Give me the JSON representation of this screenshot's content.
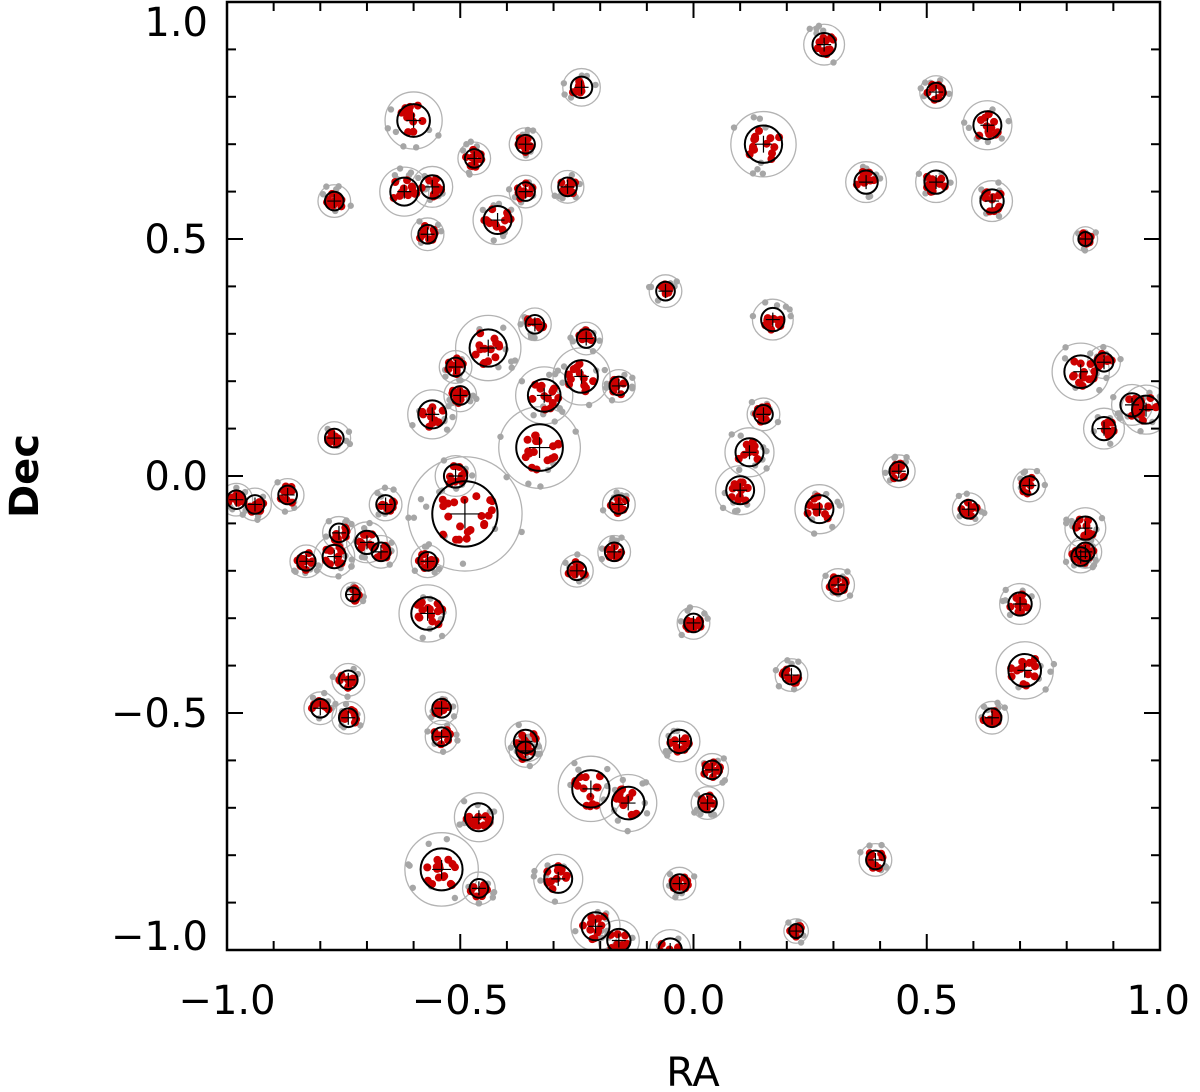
{
  "chart_data": {
    "type": "scatter",
    "title": "",
    "xlabel": "RA",
    "ylabel": "Dec",
    "xlim": [
      -1.0,
      1.0
    ],
    "ylim": [
      -1.0,
      1.0
    ],
    "grid": false,
    "xticks": [
      {
        "value": -1.0,
        "label": "−1.0"
      },
      {
        "value": -0.5,
        "label": "−0.5"
      },
      {
        "value": 0.0,
        "label": "0.0"
      },
      {
        "value": 0.5,
        "label": "0.5"
      },
      {
        "value": 1.0,
        "label": "1.0"
      }
    ],
    "yticks": [
      {
        "value": -1.0,
        "label": "−1.0"
      },
      {
        "value": -0.5,
        "label": "−0.5"
      },
      {
        "value": 0.0,
        "label": "0.0"
      },
      {
        "value": 0.5,
        "label": "0.5"
      },
      {
        "value": 1.0,
        "label": "1.0"
      }
    ],
    "colors": {
      "member": "#cc0000",
      "field": "#a6a6a6",
      "inner_circle": "#000000",
      "outer_circle": "#b3b3b3"
    },
    "clusters": [
      {
        "ra": 0.28,
        "dec": 0.91,
        "r": 0.025
      },
      {
        "ra": -0.24,
        "dec": 0.82,
        "r": 0.023
      },
      {
        "ra": 0.52,
        "dec": 0.81,
        "r": 0.02
      },
      {
        "ra": -0.6,
        "dec": 0.75,
        "r": 0.035
      },
      {
        "ra": 0.63,
        "dec": 0.74,
        "r": 0.03
      },
      {
        "ra": 0.15,
        "dec": 0.7,
        "r": 0.04
      },
      {
        "ra": -0.47,
        "dec": 0.67,
        "r": 0.02
      },
      {
        "ra": -0.36,
        "dec": 0.7,
        "r": 0.02
      },
      {
        "ra": -0.77,
        "dec": 0.58,
        "r": 0.02
      },
      {
        "ra": -0.62,
        "dec": 0.6,
        "r": 0.03
      },
      {
        "ra": -0.56,
        "dec": 0.61,
        "r": 0.025
      },
      {
        "ra": -0.36,
        "dec": 0.6,
        "r": 0.02
      },
      {
        "ra": -0.27,
        "dec": 0.61,
        "r": 0.02
      },
      {
        "ra": 0.37,
        "dec": 0.62,
        "r": 0.025
      },
      {
        "ra": 0.52,
        "dec": 0.62,
        "r": 0.025
      },
      {
        "ra": 0.64,
        "dec": 0.58,
        "r": 0.025
      },
      {
        "ra": -0.42,
        "dec": 0.54,
        "r": 0.03
      },
      {
        "ra": -0.57,
        "dec": 0.51,
        "r": 0.02
      },
      {
        "ra": 0.84,
        "dec": 0.5,
        "r": 0.015
      },
      {
        "ra": -0.06,
        "dec": 0.39,
        "r": 0.02
      },
      {
        "ra": 0.17,
        "dec": 0.33,
        "r": 0.025
      },
      {
        "ra": -0.34,
        "dec": 0.32,
        "r": 0.02
      },
      {
        "ra": -0.23,
        "dec": 0.29,
        "r": 0.02
      },
      {
        "ra": -0.44,
        "dec": 0.27,
        "r": 0.04
      },
      {
        "ra": -0.51,
        "dec": 0.23,
        "r": 0.02
      },
      {
        "ra": 0.83,
        "dec": 0.22,
        "r": 0.035
      },
      {
        "ra": 0.88,
        "dec": 0.24,
        "r": 0.02
      },
      {
        "ra": -0.24,
        "dec": 0.21,
        "r": 0.035
      },
      {
        "ra": -0.16,
        "dec": 0.19,
        "r": 0.02
      },
      {
        "ra": -0.32,
        "dec": 0.17,
        "r": 0.035
      },
      {
        "ra": -0.5,
        "dec": 0.17,
        "r": 0.02
      },
      {
        "ra": 0.97,
        "dec": 0.14,
        "r": 0.03
      },
      {
        "ra": 0.94,
        "dec": 0.15,
        "r": 0.025
      },
      {
        "ra": -0.56,
        "dec": 0.13,
        "r": 0.03
      },
      {
        "ra": 0.15,
        "dec": 0.13,
        "r": 0.02
      },
      {
        "ra": 0.88,
        "dec": 0.1,
        "r": 0.025
      },
      {
        "ra": -0.77,
        "dec": 0.08,
        "r": 0.02
      },
      {
        "ra": -0.33,
        "dec": 0.06,
        "r": 0.05
      },
      {
        "ra": 0.12,
        "dec": 0.05,
        "r": 0.03
      },
      {
        "ra": 0.44,
        "dec": 0.01,
        "r": 0.02
      },
      {
        "ra": -0.51,
        "dec": 0.0,
        "r": 0.025
      },
      {
        "ra": 0.72,
        "dec": -0.02,
        "r": 0.02
      },
      {
        "ra": 0.1,
        "dec": -0.03,
        "r": 0.03
      },
      {
        "ra": -0.94,
        "dec": -0.06,
        "r": 0.02
      },
      {
        "ra": -0.98,
        "dec": -0.05,
        "r": 0.02
      },
      {
        "ra": -0.87,
        "dec": -0.04,
        "r": 0.02
      },
      {
        "ra": -0.66,
        "dec": -0.06,
        "r": 0.02
      },
      {
        "ra": -0.16,
        "dec": -0.06,
        "r": 0.02
      },
      {
        "ra": 0.59,
        "dec": -0.07,
        "r": 0.02
      },
      {
        "ra": 0.27,
        "dec": -0.07,
        "r": 0.03
      },
      {
        "ra": -0.49,
        "dec": -0.08,
        "r": 0.07
      },
      {
        "ra": 0.84,
        "dec": -0.11,
        "r": 0.025
      },
      {
        "ra": -0.76,
        "dec": -0.12,
        "r": 0.02
      },
      {
        "ra": -0.7,
        "dec": -0.14,
        "r": 0.025
      },
      {
        "ra": -0.67,
        "dec": -0.16,
        "r": 0.02
      },
      {
        "ra": -0.77,
        "dec": -0.17,
        "r": 0.025
      },
      {
        "ra": -0.17,
        "dec": -0.16,
        "r": 0.02
      },
      {
        "ra": 0.84,
        "dec": -0.16,
        "r": 0.02
      },
      {
        "ra": 0.83,
        "dec": -0.17,
        "r": 0.02
      },
      {
        "ra": -0.83,
        "dec": -0.18,
        "r": 0.02
      },
      {
        "ra": -0.57,
        "dec": -0.18,
        "r": 0.02
      },
      {
        "ra": -0.25,
        "dec": -0.2,
        "r": 0.02
      },
      {
        "ra": 0.31,
        "dec": -0.23,
        "r": 0.02
      },
      {
        "ra": -0.73,
        "dec": -0.25,
        "r": 0.015
      },
      {
        "ra": 0.7,
        "dec": -0.27,
        "r": 0.025
      },
      {
        "ra": -0.57,
        "dec": -0.29,
        "r": 0.035
      },
      {
        "ra": 0.0,
        "dec": -0.31,
        "r": 0.02
      },
      {
        "ra": 0.71,
        "dec": -0.41,
        "r": 0.035
      },
      {
        "ra": 0.21,
        "dec": -0.42,
        "r": 0.02
      },
      {
        "ra": -0.74,
        "dec": -0.43,
        "r": 0.02
      },
      {
        "ra": -0.8,
        "dec": -0.49,
        "r": 0.02
      },
      {
        "ra": -0.54,
        "dec": -0.49,
        "r": 0.02
      },
      {
        "ra": -0.74,
        "dec": -0.51,
        "r": 0.02
      },
      {
        "ra": 0.64,
        "dec": -0.51,
        "r": 0.02
      },
      {
        "ra": -0.54,
        "dec": -0.55,
        "r": 0.02
      },
      {
        "ra": -0.36,
        "dec": -0.56,
        "r": 0.025
      },
      {
        "ra": -0.36,
        "dec": -0.58,
        "r": 0.02
      },
      {
        "ra": -0.03,
        "dec": -0.56,
        "r": 0.025
      },
      {
        "ra": 0.04,
        "dec": -0.62,
        "r": 0.02
      },
      {
        "ra": -0.22,
        "dec": -0.66,
        "r": 0.04
      },
      {
        "ra": -0.14,
        "dec": -0.69,
        "r": 0.035
      },
      {
        "ra": 0.03,
        "dec": -0.69,
        "r": 0.02
      },
      {
        "ra": -0.46,
        "dec": -0.72,
        "r": 0.03
      },
      {
        "ra": 0.39,
        "dec": -0.81,
        "r": 0.02
      },
      {
        "ra": -0.54,
        "dec": -0.83,
        "r": 0.045
      },
      {
        "ra": -0.29,
        "dec": -0.85,
        "r": 0.03
      },
      {
        "ra": -0.03,
        "dec": -0.86,
        "r": 0.02
      },
      {
        "ra": -0.46,
        "dec": -0.87,
        "r": 0.02
      },
      {
        "ra": -0.21,
        "dec": -0.95,
        "r": 0.03
      },
      {
        "ra": 0.22,
        "dec": -0.96,
        "r": 0.015
      },
      {
        "ra": -0.16,
        "dec": -0.98,
        "r": 0.025
      },
      {
        "ra": -0.05,
        "dec": -1.0,
        "r": 0.025
      }
    ]
  }
}
